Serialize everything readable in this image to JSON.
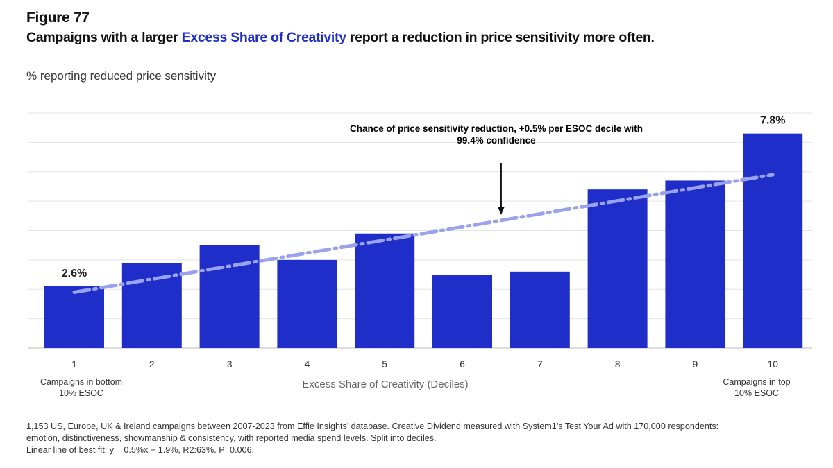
{
  "figure_label": "Figure 77",
  "title": {
    "prefix": "Campaigns with a larger ",
    "highlight": "Excess Share of Creativity",
    "suffix": " report a reduction in price sensitivity more often."
  },
  "colors": {
    "bar": "#1f2ec9",
    "trend": "#9aa2ee",
    "highlight": "#1f2ec9"
  },
  "chart_data": {
    "type": "bar",
    "ylabel": "% reporting reduced price sensitivity",
    "xlabel": "Excess Share of Creativity (Deciles)",
    "categories": [
      "1",
      "2",
      "3",
      "4",
      "5",
      "6",
      "7",
      "8",
      "9",
      "10"
    ],
    "values": [
      2.6,
      3.4,
      4.0,
      3.5,
      4.4,
      3.0,
      3.1,
      5.9,
      6.2,
      7.8
    ],
    "data_labels": {
      "0": "2.6%",
      "9": "7.8%"
    },
    "ylim": [
      0.5,
      8.5
    ],
    "grid": true,
    "trendline": {
      "type": "linear",
      "x": [
        1,
        10
      ],
      "y": [
        2.4,
        6.4
      ],
      "style": "dash-dot"
    },
    "annotation": {
      "line1": "Chance of price sensitivity reduction, +0.5% per ESOC decile with",
      "line2": "99.4% confidence",
      "arrow_x": 6.5
    },
    "end_labels": {
      "left_1": "Campaigns in bottom",
      "left_2": "10% ESOC",
      "right_1": "Campaigns in top",
      "right_2": "10% ESOC"
    }
  },
  "footnote": {
    "line1": "1,153 US, Europe, UK & Ireland campaigns between 2007-2023 from Effie Insights’ database. Creative Dividend measured with System1’s Test Your Ad with 170,000 respondents:",
    "line2": "emotion, distinctiveness, showmanship & consistency, with reported media spend levels. Split into deciles.",
    "line3": "Linear line of best fit: y = 0.5%x + 1.9%, R2:63%. P=0.006."
  }
}
